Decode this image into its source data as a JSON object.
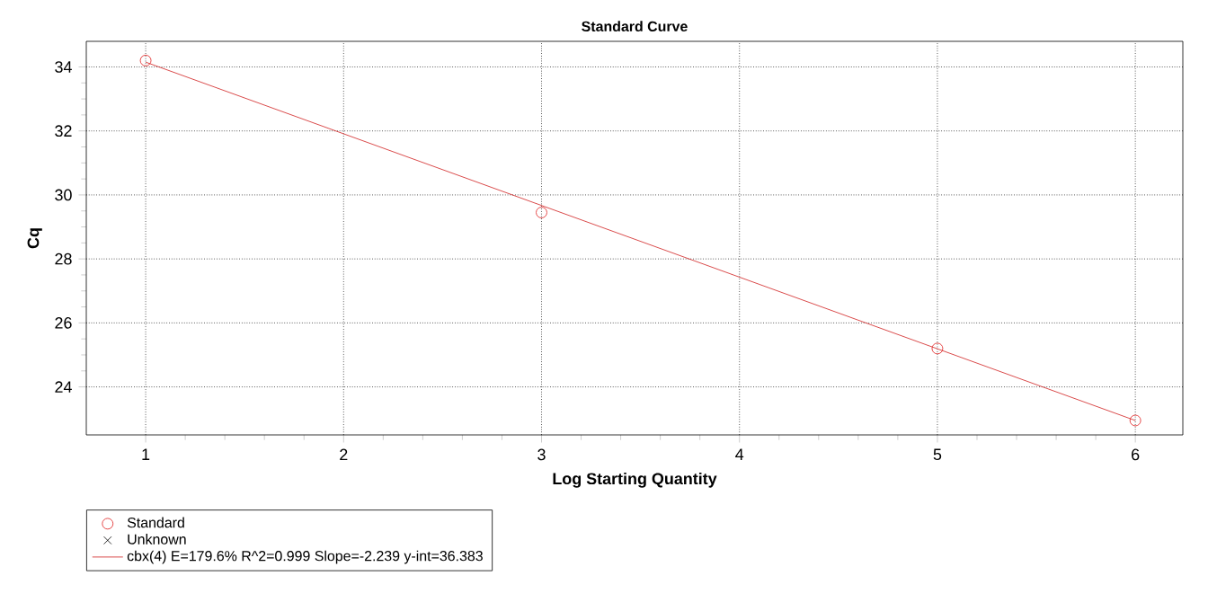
{
  "chart_data": {
    "type": "scatter",
    "title": "Standard Curve",
    "xlabel": "Log Starting Quantity",
    "ylabel": "Cq",
    "series": [
      {
        "name": "Standard",
        "marker": "circle",
        "color": "#e02020",
        "x": [
          1,
          3,
          5,
          6
        ],
        "values": [
          34.2,
          29.45,
          25.2,
          22.95
        ]
      },
      {
        "name": "Unknown",
        "type": "scatter",
        "marker": "cross",
        "color": "#000000"
      },
      {
        "name": "cbx(4)   E=179.6% R^2=0.999 Slope=-2.239 y-int=36.383",
        "type": "line",
        "marker": "none",
        "color": "#d02020",
        "x": [
          1,
          6
        ],
        "values": [
          34.15,
          22.95
        ]
      }
    ],
    "xlim": [
      0.7,
      6.24
    ],
    "ylim": [
      22.5,
      34.8
    ],
    "xticks": [
      1,
      2,
      3,
      4,
      5,
      6
    ],
    "yticks": [
      24,
      26,
      28,
      30,
      32,
      34
    ],
    "grid": true,
    "legend": "bottom left"
  }
}
